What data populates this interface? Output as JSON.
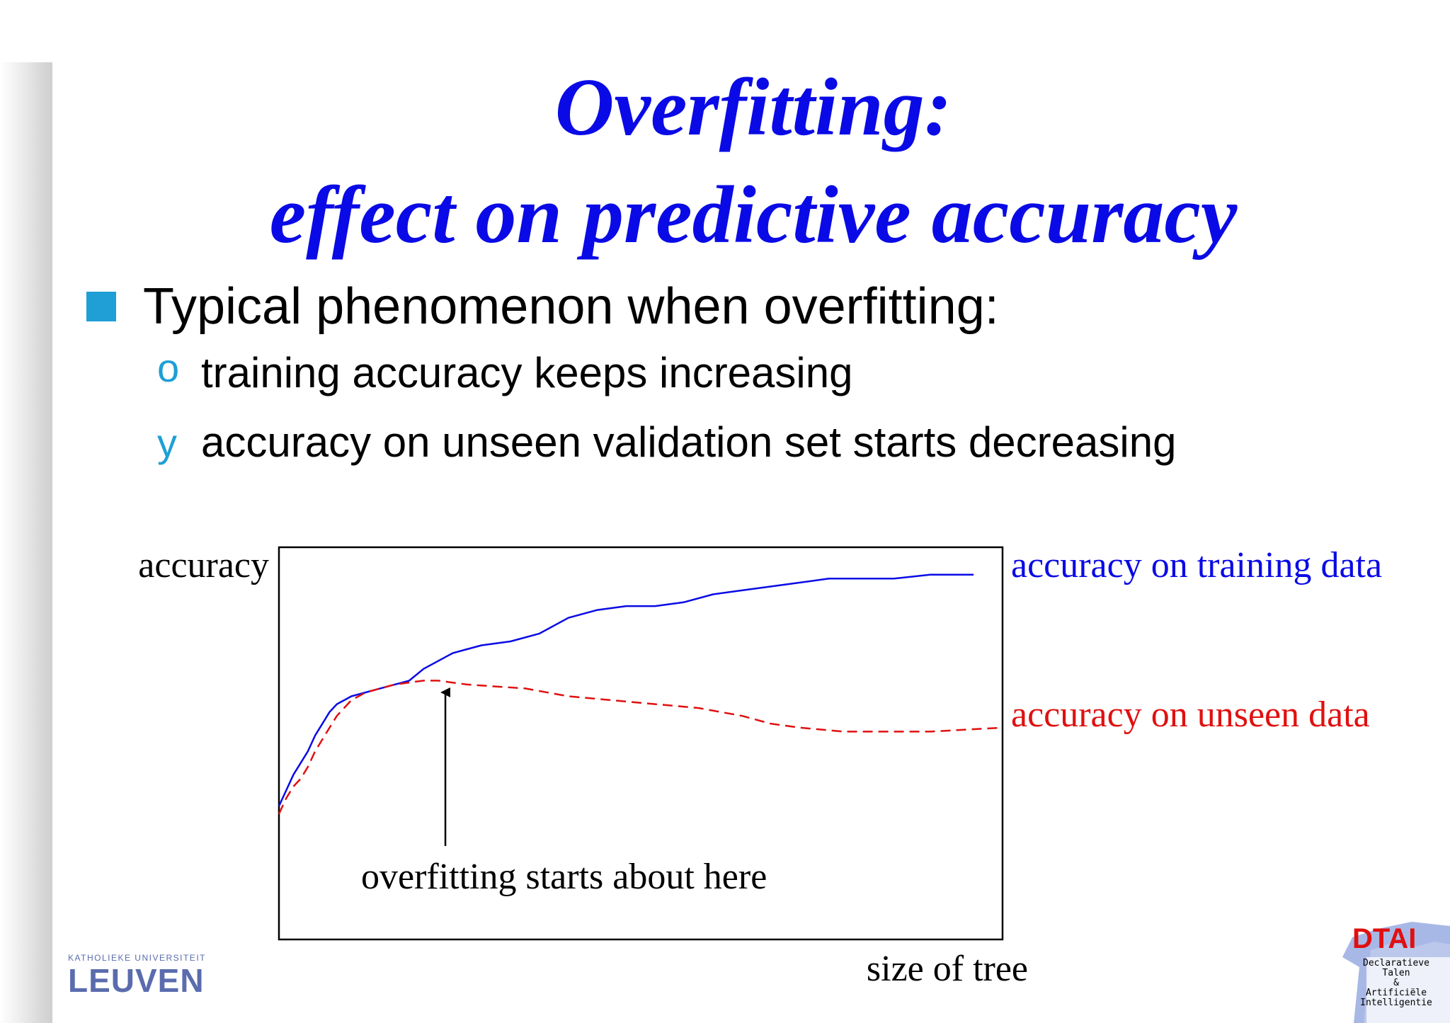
{
  "title": {
    "line1": "Overfitting:",
    "line2": "effect on predictive accuracy"
  },
  "bullets": {
    "main": "Typical phenomenon when overfitting:",
    "sub1_marker": "o",
    "sub1": "training accuracy keeps increasing",
    "sub2_marker": "y",
    "sub2": "accuracy on unseen validation set starts decreasing"
  },
  "chart_data": {
    "type": "line",
    "title": "",
    "xlabel": "size of tree",
    "ylabel": "accuracy",
    "xlim": [
      0,
      100
    ],
    "ylim": [
      0,
      100
    ],
    "grid": false,
    "series": [
      {
        "name": "accuracy on training data",
        "color": "#0a0ae6",
        "style": "solid",
        "points": [
          [
            0,
            34
          ],
          [
            1,
            38
          ],
          [
            2,
            42
          ],
          [
            3,
            45
          ],
          [
            4,
            48
          ],
          [
            5,
            52
          ],
          [
            6,
            55
          ],
          [
            7,
            58
          ],
          [
            8,
            60
          ],
          [
            9,
            61
          ],
          [
            10,
            62
          ],
          [
            12,
            63
          ],
          [
            14,
            64
          ],
          [
            16,
            65
          ],
          [
            18,
            66
          ],
          [
            20,
            69
          ],
          [
            22,
            71
          ],
          [
            24,
            73
          ],
          [
            26,
            74
          ],
          [
            28,
            75
          ],
          [
            32,
            76
          ],
          [
            36,
            78
          ],
          [
            40,
            82
          ],
          [
            44,
            84
          ],
          [
            48,
            85
          ],
          [
            52,
            85
          ],
          [
            56,
            86
          ],
          [
            60,
            88
          ],
          [
            64,
            89
          ],
          [
            68,
            90
          ],
          [
            72,
            91
          ],
          [
            76,
            92
          ],
          [
            80,
            92
          ],
          [
            85,
            92
          ],
          [
            90,
            93
          ],
          [
            96,
            93
          ]
        ]
      },
      {
        "name": "accuracy on unseen data",
        "color": "#e01010",
        "style": "dashed",
        "points": [
          [
            0,
            32
          ],
          [
            1,
            36
          ],
          [
            2,
            39
          ],
          [
            3,
            41
          ],
          [
            4,
            44
          ],
          [
            5,
            48
          ],
          [
            6,
            51
          ],
          [
            7,
            54
          ],
          [
            8,
            57
          ],
          [
            10,
            61
          ],
          [
            12,
            63
          ],
          [
            14,
            64
          ],
          [
            16,
            65
          ],
          [
            18,
            65.5
          ],
          [
            20,
            66
          ],
          [
            22,
            66
          ],
          [
            26,
            65
          ],
          [
            30,
            64.5
          ],
          [
            34,
            64
          ],
          [
            40,
            62
          ],
          [
            46,
            61
          ],
          [
            52,
            60
          ],
          [
            58,
            59
          ],
          [
            64,
            57
          ],
          [
            68,
            55
          ],
          [
            72,
            54
          ],
          [
            78,
            53
          ],
          [
            84,
            53
          ],
          [
            90,
            53
          ],
          [
            100,
            54
          ]
        ]
      }
    ],
    "annotations": [
      {
        "text": "overfitting starts about here",
        "arrow_x": 23
      }
    ]
  },
  "logos": {
    "kul_top": "KATHOLIEKE UNIVERSITEIT",
    "kul_main": "LEUVEN",
    "dtai_title": "DTAI",
    "dtai_lines": [
      "Declaratieve",
      "Talen",
      "&",
      "Artificiële",
      "Intelligentie"
    ]
  }
}
